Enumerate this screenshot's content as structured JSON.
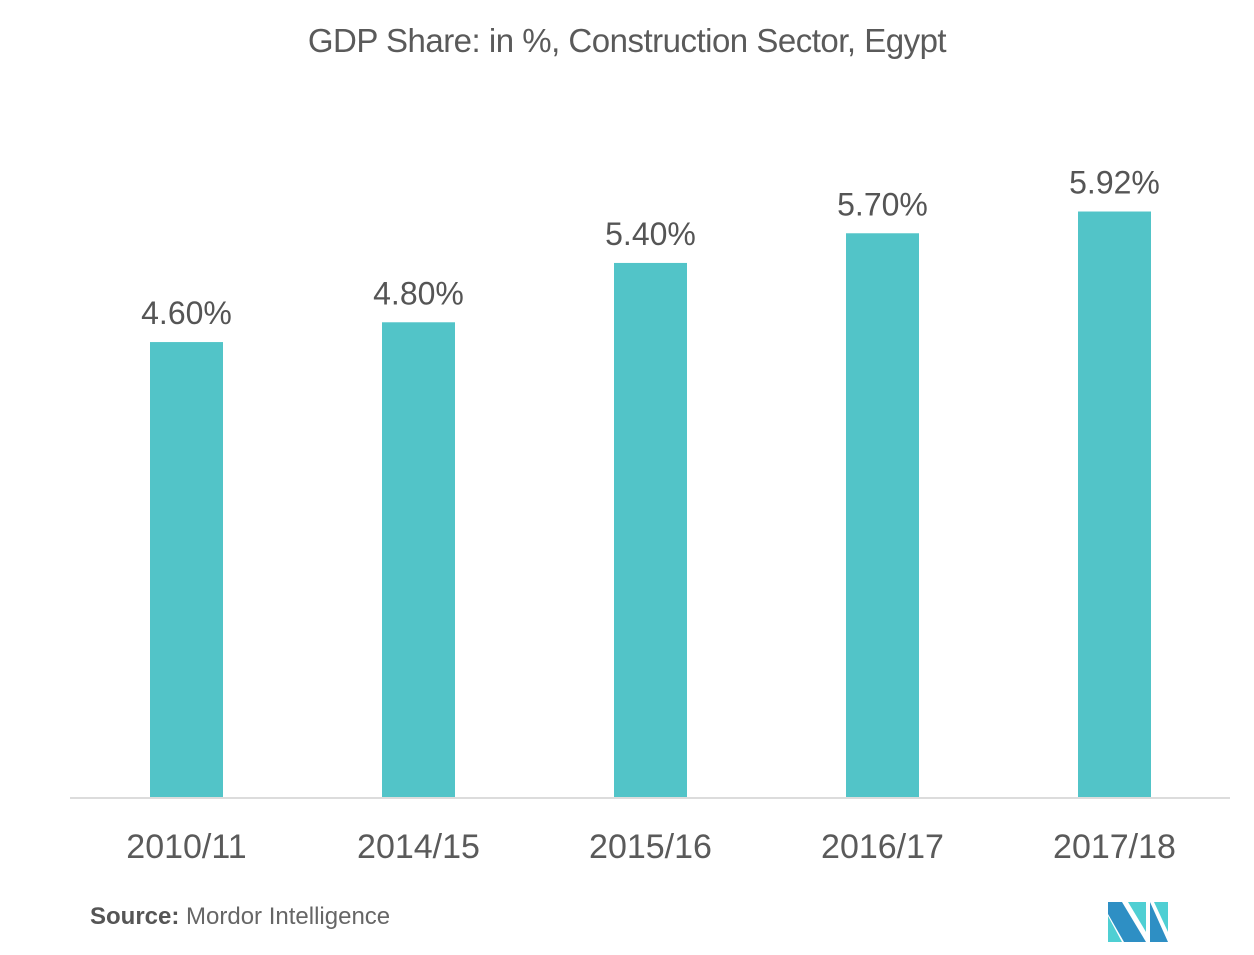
{
  "chart_data": {
    "type": "bar",
    "title": "GDP Share: in %, Construction Sector, Egypt",
    "categories": [
      "2010/11",
      "2014/15",
      "2015/16",
      "2016/17",
      "2017/18"
    ],
    "values": [
      4.6,
      4.8,
      5.4,
      5.7,
      5.92
    ],
    "data_labels": [
      "4.60%",
      "4.80%",
      "5.40%",
      "5.70%",
      "5.92%"
    ],
    "xlabel": "",
    "ylabel": "",
    "ylim": [
      0,
      6.4
    ],
    "grid": false,
    "legend": "none",
    "bar_color": "#52c4c8",
    "axis_color": "#dcdcdc"
  },
  "source": {
    "label": "Source:",
    "text": "Mordor Intelligence"
  },
  "logo": {
    "icon": "mordor-intelligence-logo-icon",
    "colors": [
      "#2e8fc4",
      "#4fcfd3"
    ]
  }
}
